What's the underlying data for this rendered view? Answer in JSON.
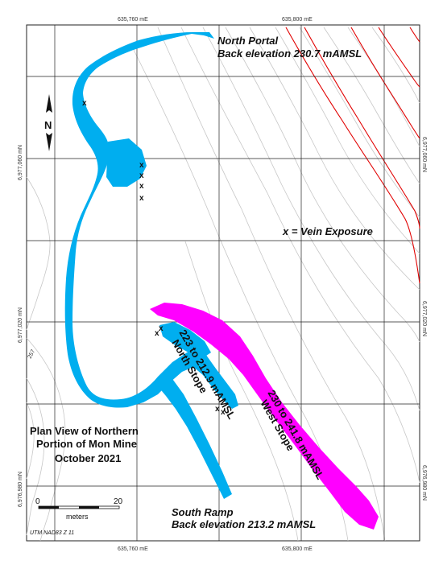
{
  "colors": {
    "working": "#00aeef",
    "west_stope": "#ff00ff",
    "road": "#e10000",
    "contour": "#c7c7c7",
    "grid": "#222222"
  },
  "grid_labels": {
    "top": [
      "635,760 mE",
      "635,800 mE"
    ],
    "bottom": [
      "635,760 mE",
      "635,800 mE"
    ],
    "left": [
      "6,977,060 mN",
      "6,977,020 mN",
      "6,976,980 mN"
    ],
    "right": [
      "6,977,060 mN",
      "6,977,020 mN",
      "6,976,980 mN"
    ]
  },
  "contour_label": "257",
  "north_portal": {
    "name": "North Portal",
    "elevation": "Back elevation 230.7 mAMSL"
  },
  "legend_vein": "x = Vein Exposure",
  "north_stope": {
    "name": "North Stope",
    "range": "223 to 212.9 mAMSL"
  },
  "west_stope": {
    "name": "West Stope",
    "range": "230 to 241.8 mAMSL"
  },
  "title_lines": [
    "Plan View of Northern",
    "Portion of Mon Mine",
    "October 2021"
  ],
  "south_ramp": {
    "name": "South Ramp",
    "elevation": "Back elevation 213.2 mAMSL"
  },
  "north_arrow": {
    "letter": "N"
  },
  "scale_bar": {
    "start": "0",
    "end": "20",
    "unit": "meters"
  },
  "projection": "UTM NAD83 Z 11",
  "vein_marker": "x"
}
